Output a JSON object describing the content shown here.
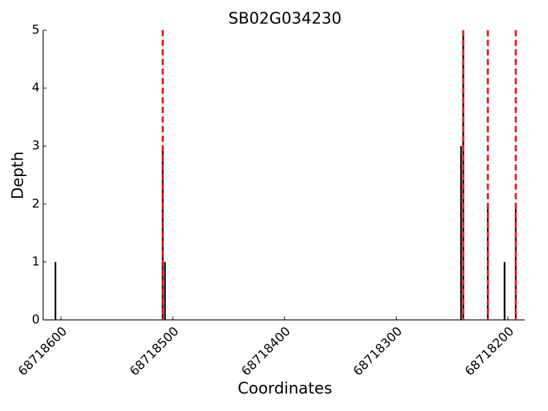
{
  "chart_data": {
    "type": "bar",
    "title": "SB02G034230",
    "x_label": "Coordinates",
    "y_label": "Depth",
    "x": [
      68718605,
      68718509,
      68718507,
      68718242,
      68718240,
      68718218,
      68718203,
      68718193
    ],
    "values": [
      1,
      3,
      1,
      3,
      5,
      2,
      1,
      2
    ],
    "color": "#000000",
    "vlines": [
      68718509,
      68718240,
      68718218,
      68718193
    ],
    "vline_color": "#ee1111",
    "xlim": [
      68718616,
      68718185
    ],
    "xticks": [
      68718600,
      68718500,
      68718400,
      68718300,
      68718200
    ],
    "ylim": [
      0,
      5
    ],
    "yticks": [
      0,
      1,
      2,
      3,
      4,
      5
    ]
  }
}
